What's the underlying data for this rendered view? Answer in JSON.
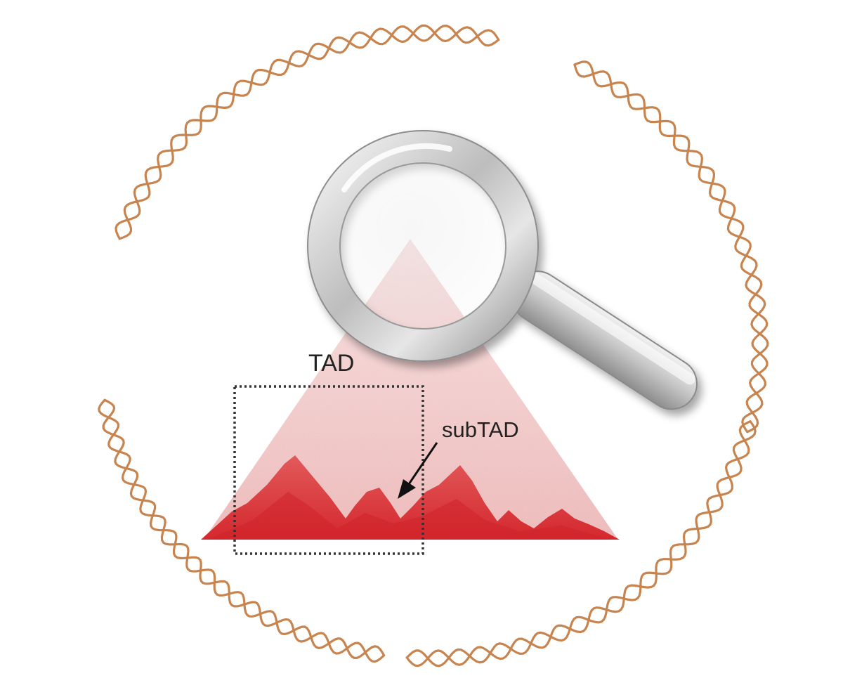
{
  "labels": {
    "tad": "TAD",
    "subtad": "subTAD"
  },
  "colors": {
    "background": "#ffffff",
    "dna_strand": "#c8844e",
    "heatmap_dense": "#d9363a",
    "heatmap_light": "#f4d2d2",
    "label_text": "#222222",
    "dashed_box": "#333333",
    "magnifier_silver": "#c9c9c9"
  },
  "icons": {
    "magnifier": "magnifying-glass-icon",
    "dna": "dna-double-helix-icon",
    "arrow": "pointer-arrow-icon"
  }
}
